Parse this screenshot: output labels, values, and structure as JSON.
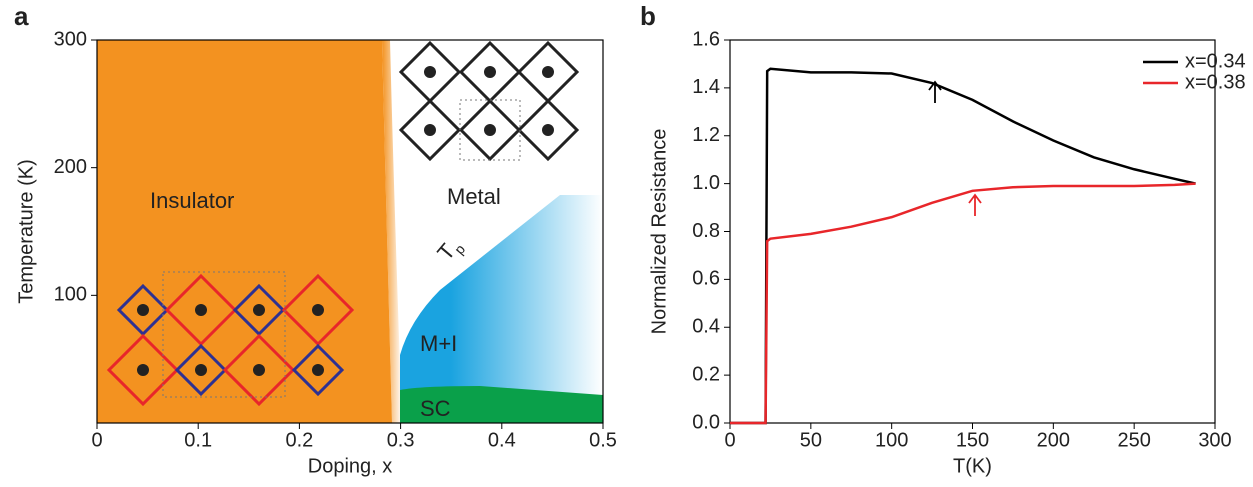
{
  "chart_data": [
    {
      "type": "phase",
      "panel": "a",
      "xlabel": "Doping, x",
      "ylabel": "Temperature (K)",
      "xlim": [
        0,
        0.5
      ],
      "xticks": [
        0,
        0.1,
        0.2,
        0.3,
        0.4,
        0.5
      ],
      "ylim": [
        0,
        300
      ],
      "yticks": [
        100,
        200,
        300
      ],
      "regions": [
        "Insulator",
        "Metal",
        "M+I",
        "SC"
      ],
      "boundary_label": {
        "main": "T",
        "sub": "p"
      },
      "colors": {
        "insulator": "#f39220",
        "mixed": "#1aa3e0",
        "sc": "#0aa04a"
      }
    },
    {
      "type": "line",
      "panel": "b",
      "xlabel": "T(K)",
      "ylabel": "Normalized Resistance",
      "xlim": [
        0,
        300
      ],
      "xticks": [
        0,
        50,
        100,
        150,
        200,
        250,
        300
      ],
      "ylim": [
        0,
        1.6
      ],
      "yticks": [
        {
          "value": 0,
          "label": "0.0"
        },
        0.2,
        0.4,
        0.6,
        0.8,
        {
          "value": 1,
          "label": "1.0"
        },
        1.2,
        1.4,
        1.6
      ],
      "x": [
        0,
        20,
        22,
        23,
        25,
        50,
        75,
        100,
        125,
        150,
        175,
        200,
        225,
        250,
        275,
        288
      ],
      "series": [
        {
          "name": "x=0.34",
          "color": "#000000",
          "values": [
            0,
            0,
            0,
            1.47,
            1.48,
            1.465,
            1.465,
            1.46,
            1.42,
            1.35,
            1.26,
            1.18,
            1.11,
            1.06,
            1.02,
            1.0
          ]
        },
        {
          "name": "x=0.38",
          "color": "#e8262a",
          "values": [
            0,
            0,
            0,
            0.76,
            0.77,
            0.79,
            0.82,
            0.86,
            0.92,
            0.97,
            0.985,
            0.99,
            0.99,
            0.99,
            0.995,
            1.0
          ]
        }
      ],
      "legend": "upper right"
    }
  ]
}
